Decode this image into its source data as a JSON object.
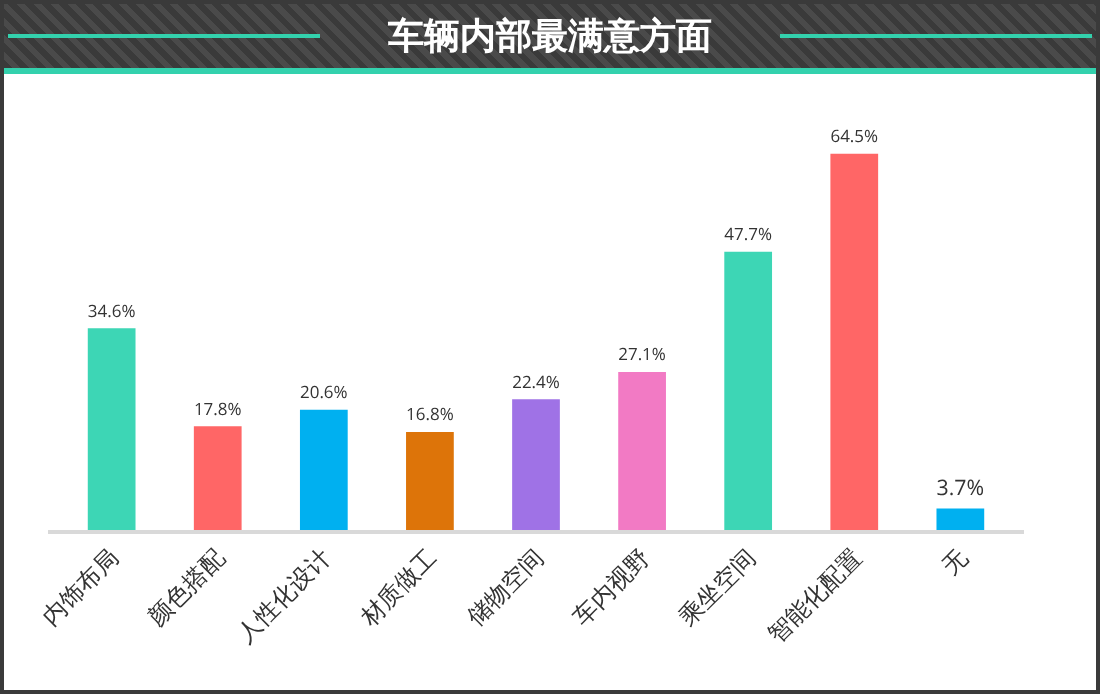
{
  "chart_data": {
    "type": "bar",
    "title": "车辆内部最满意方面",
    "categories": [
      "内饰布局",
      "颜色搭配",
      "人性化设计",
      "材质做工",
      "储物空间",
      "车内视野",
      "乘坐空间",
      "智能化配置",
      "无"
    ],
    "values": [
      34.6,
      17.8,
      20.6,
      16.8,
      22.4,
      27.1,
      47.7,
      64.5,
      3.7
    ],
    "colors": [
      "#3dd6b5",
      "#ff6666",
      "#00b0f0",
      "#dd7409",
      "#9f72e6",
      "#f27ac4",
      "#3dd6b5",
      "#ff6666",
      "#00b0f0"
    ],
    "data_labels": true,
    "value_labels": [
      "34.6%",
      "17.8%",
      "20.6%",
      "16.8%",
      "22.4%",
      "27.1%",
      "47.7%",
      "64.5%",
      "3.7%"
    ],
    "grid": false,
    "legend": false
  }
}
